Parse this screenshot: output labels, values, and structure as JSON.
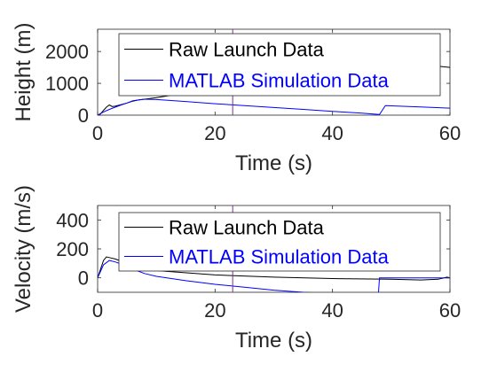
{
  "chart_data": [
    {
      "type": "line",
      "title": "",
      "xlabel": "Time (s)",
      "ylabel": "Height (m)",
      "xlim": [
        0,
        60
      ],
      "ylim": [
        0,
        2700
      ],
      "xticks": [
        0,
        20,
        40,
        60
      ],
      "xtick_labels": [
        "0",
        "20",
        "40",
        "60"
      ],
      "yticks": [
        0,
        1000,
        2000
      ],
      "ytick_labels": [
        "0",
        "1000",
        "2000"
      ],
      "grid": false,
      "legend_position": "top-right",
      "marker_line_x": 23,
      "series": [
        {
          "name": "Raw Launch Data",
          "color": "#000000",
          "x": [
            0,
            0.5,
            1,
            1.5,
            2,
            2.5,
            3,
            4,
            5,
            6,
            7,
            8,
            10,
            15,
            20,
            23,
            30,
            40,
            50,
            55,
            58,
            60
          ],
          "y": [
            0,
            40,
            150,
            250,
            320,
            270,
            280,
            330,
            380,
            440,
            480,
            500,
            550,
            700,
            900,
            1000,
            1200,
            1400,
            1520,
            1540,
            1540,
            1500
          ]
        },
        {
          "name": "MATLAB Simulation Data",
          "color": "#0000ff",
          "x": [
            0,
            1,
            2,
            3,
            4,
            5,
            6,
            8,
            10,
            15,
            20,
            25,
            30,
            35,
            40,
            45,
            48,
            49,
            55,
            60
          ],
          "y": [
            0,
            100,
            180,
            250,
            320,
            380,
            450,
            500,
            490,
            430,
            360,
            300,
            240,
            180,
            120,
            60,
            20,
            300,
            260,
            220
          ]
        }
      ]
    },
    {
      "type": "line",
      "title": "",
      "xlabel": "Time (s)",
      "ylabel": "Velocity (m/s)",
      "xlim": [
        0,
        60
      ],
      "ylim": [
        -100,
        500
      ],
      "xticks": [
        0,
        20,
        40,
        60
      ],
      "xtick_labels": [
        "0",
        "20",
        "40",
        "60"
      ],
      "yticks": [
        0,
        200,
        400
      ],
      "ytick_labels": [
        "0",
        "200",
        "400"
      ],
      "grid": false,
      "legend_position": "top-right",
      "marker_line_x": 23,
      "series": [
        {
          "name": "Raw Launch Data",
          "color": "#000000",
          "x": [
            0,
            0.5,
            1,
            1.5,
            2,
            3,
            4,
            5,
            6,
            8,
            10,
            20,
            30,
            40,
            50,
            55,
            58,
            59.5,
            60
          ],
          "y": [
            0,
            60,
            120,
            145,
            140,
            130,
            115,
            105,
            90,
            70,
            50,
            20,
            5,
            -5,
            -10,
            -15,
            -10,
            5,
            0
          ]
        },
        {
          "name": "MATLAB Simulation Data",
          "color": "#0000ff",
          "x": [
            0,
            1,
            2,
            3,
            4,
            5,
            6,
            8,
            10,
            15,
            20,
            25,
            30,
            35,
            40,
            45,
            47.8,
            48,
            55,
            60
          ],
          "y": [
            0,
            90,
            120,
            110,
            95,
            80,
            60,
            30,
            10,
            -20,
            -45,
            -65,
            -85,
            -100,
            -110,
            -115,
            -118,
            0,
            0,
            0
          ]
        }
      ]
    }
  ]
}
